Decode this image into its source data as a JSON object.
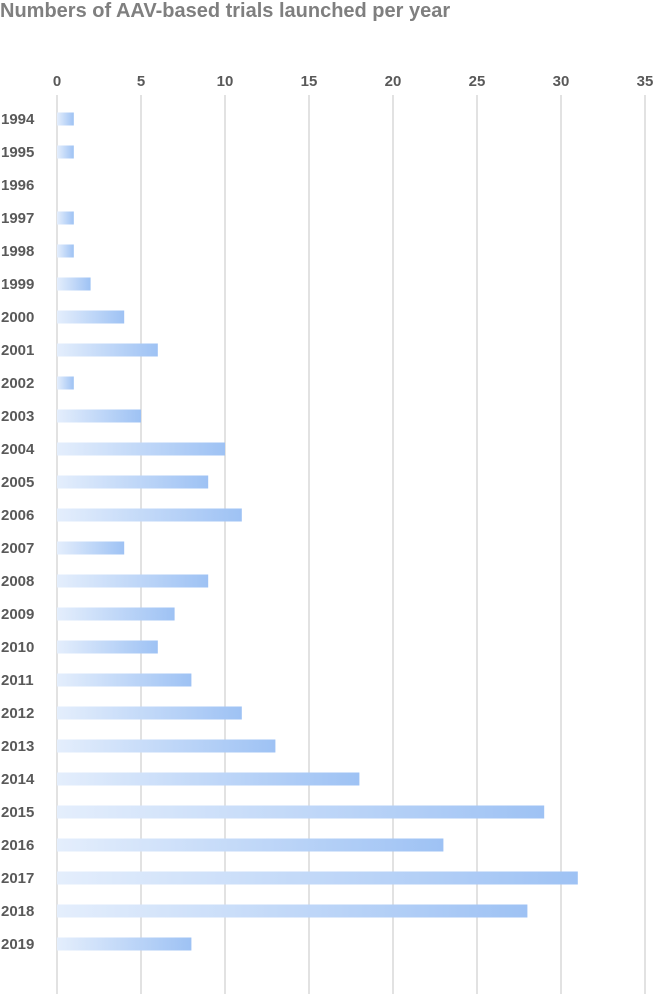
{
  "chart_data": {
    "type": "bar",
    "orientation": "horizontal",
    "title": "Numbers of AAV-based trials launched per year",
    "categories": [
      "1994",
      "1995",
      "1996",
      "1997",
      "1998",
      "1999",
      "2000",
      "2001",
      "2002",
      "2003",
      "2004",
      "2005",
      "2006",
      "2007",
      "2008",
      "2009",
      "2010",
      "2011",
      "2012",
      "2013",
      "2014",
      "2015",
      "2016",
      "2017",
      "2018",
      "2019"
    ],
    "values": [
      1,
      1,
      0,
      1,
      1,
      2,
      4,
      6,
      1,
      5,
      10,
      9,
      11,
      4,
      9,
      7,
      6,
      8,
      11,
      13,
      18,
      29,
      23,
      31,
      28,
      8
    ],
    "xlim": [
      0,
      35
    ],
    "xticks": [
      "0",
      "5",
      "10",
      "15",
      "20",
      "25",
      "30",
      "35"
    ],
    "axis_position": "top",
    "grid": true,
    "bar_colors": {
      "start": "#e4eefc",
      "end": "#9ec2f4"
    }
  }
}
